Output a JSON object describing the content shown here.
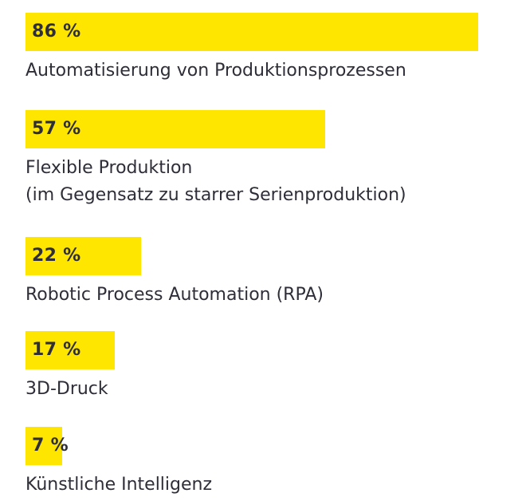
{
  "chart_data": {
    "type": "bar",
    "orientation": "horizontal",
    "title": "",
    "xlabel": "",
    "ylabel": "",
    "xlim": [
      0,
      100
    ],
    "unit": "%",
    "grid": false,
    "legend": "none",
    "bar_color": "#ffe600",
    "text_color": "#2e2e38",
    "categories": [
      [
        "Automatisierung von Produktionsprozessen"
      ],
      [
        "Flexible Produktion",
        "(im Gegensatz zu starrer Serienproduktion)"
      ],
      [
        "Robotic Process Automation (RPA)"
      ],
      [
        "3D-Druck"
      ],
      [
        "Künstliche Intelligenz"
      ]
    ],
    "values": [
      86,
      57,
      22,
      17,
      7
    ],
    "value_labels": [
      "86 %",
      "57 %",
      "22 %",
      "17 %",
      "7 %"
    ]
  }
}
